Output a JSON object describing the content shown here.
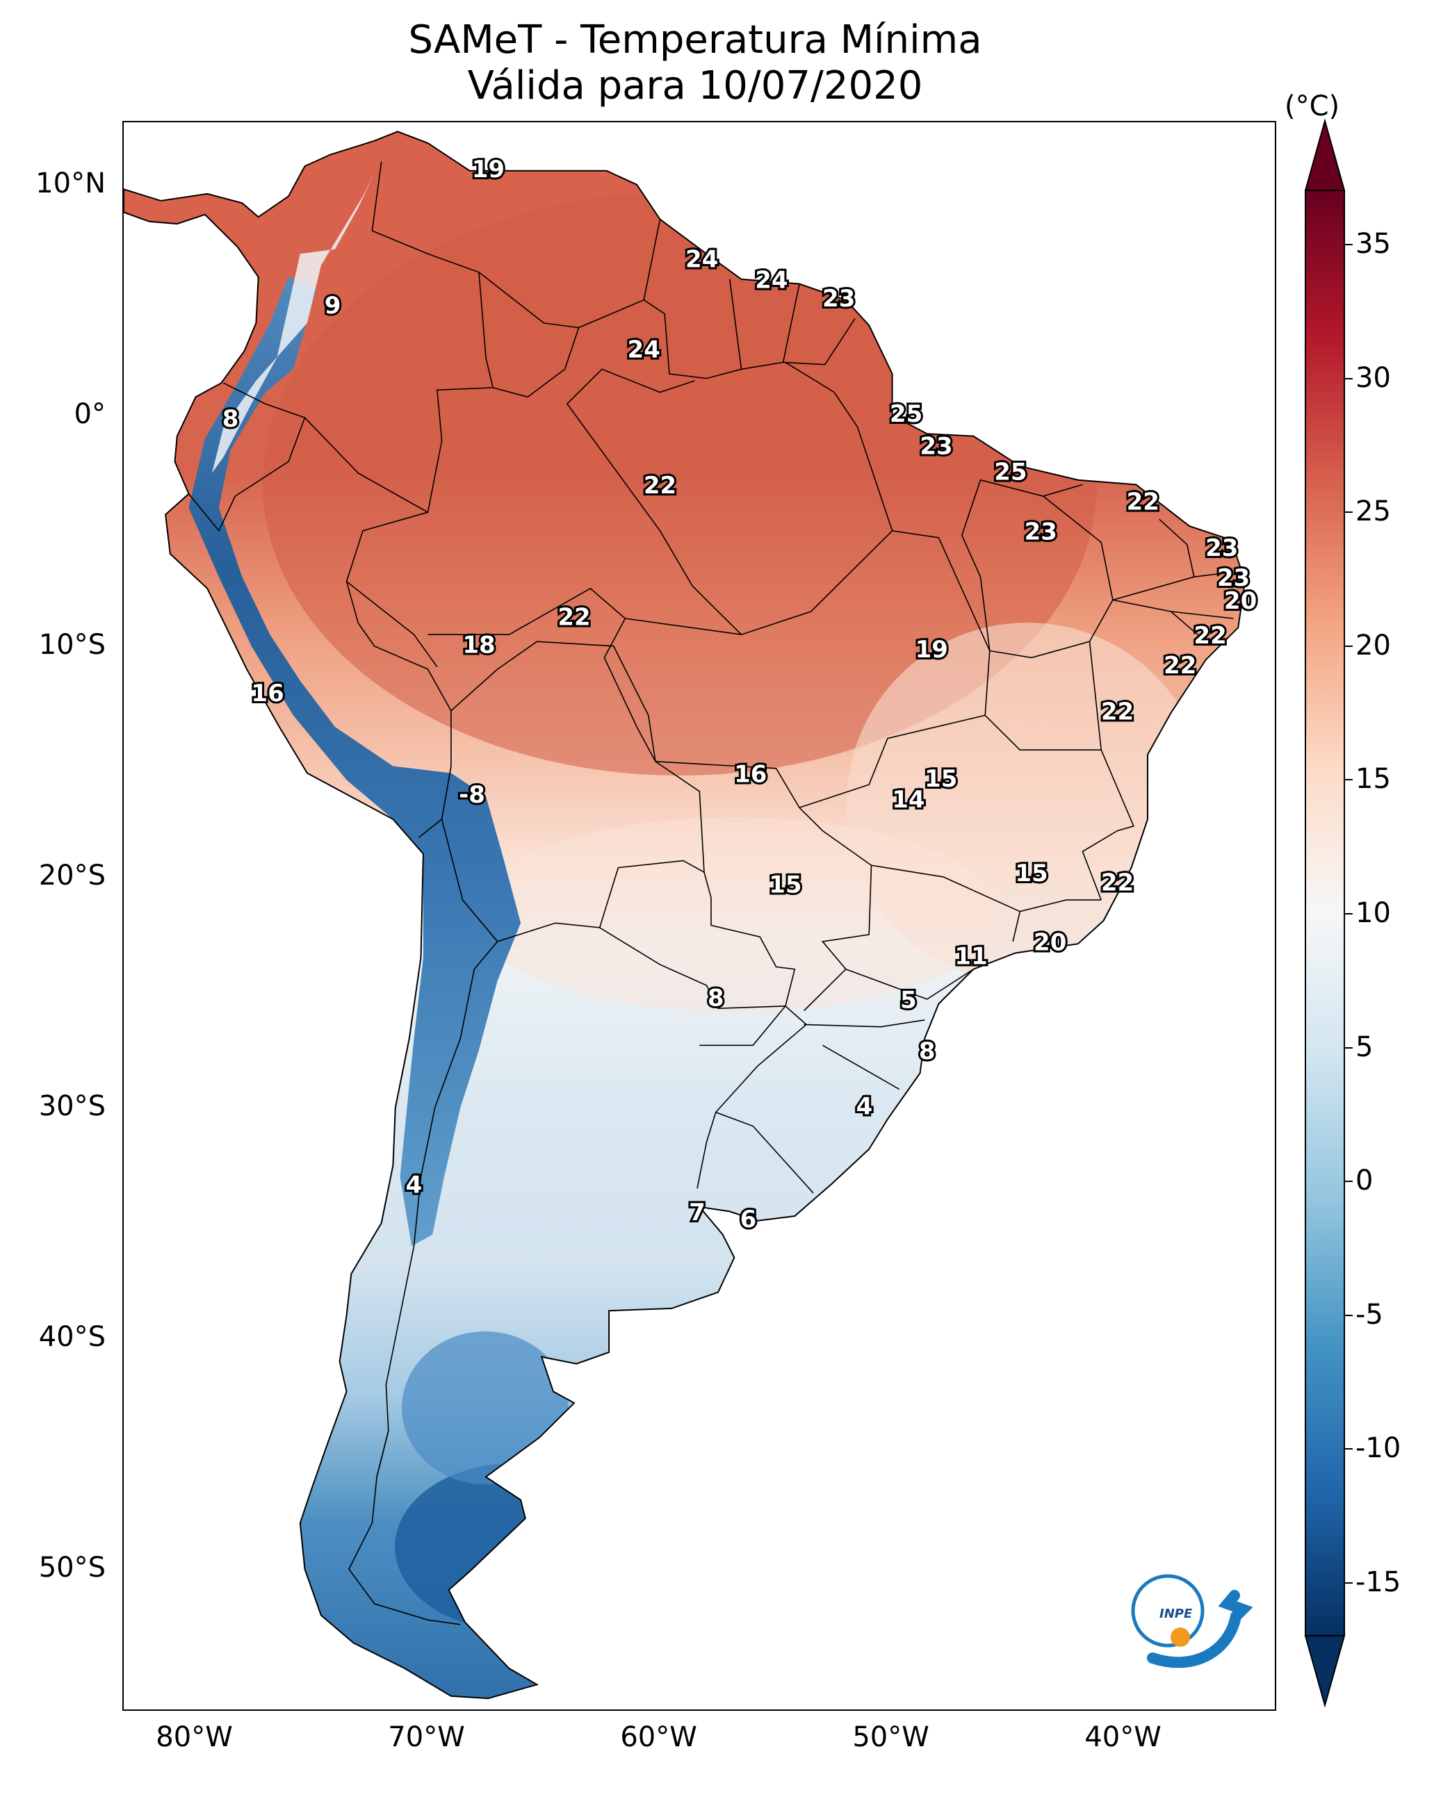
{
  "title": "SAMeT - Temperatura Mínima",
  "subtitle": "Válida para 10/07/2020",
  "colorbar": {
    "unit": "(°C)",
    "ticks": [
      "35",
      "30",
      "25",
      "20",
      "15",
      "10",
      "5",
      "0",
      "-5",
      "-10",
      "-15"
    ],
    "range": [
      -17,
      37
    ],
    "colors": [
      "#053061",
      "#2166ac",
      "#4393c3",
      "#92c5de",
      "#d1e5f0",
      "#f7f7f7",
      "#fddbc7",
      "#f4a582",
      "#d6604d",
      "#b2182b",
      "#67001f"
    ]
  },
  "axes": {
    "lat_labels": [
      "10°N",
      "0°",
      "10°S",
      "20°S",
      "30°S",
      "40°S",
      "50°S"
    ],
    "lon_labels": [
      "80°W",
      "70°W",
      "60°W",
      "50°W",
      "40°W"
    ]
  },
  "logo": {
    "text": "INPE",
    "icon": "inpe-logo"
  },
  "station_labels": [
    {
      "value": "19",
      "lon": -67.4,
      "lat": 10.6
    },
    {
      "value": "9",
      "lon": -74.1,
      "lat": 4.7
    },
    {
      "value": "24",
      "lon": -58.2,
      "lat": 6.7
    },
    {
      "value": "24",
      "lon": -55.2,
      "lat": 5.8
    },
    {
      "value": "23",
      "lon": -52.3,
      "lat": 5.0
    },
    {
      "value": "24",
      "lon": -60.7,
      "lat": 2.8
    },
    {
      "value": "8",
      "lon": -78.5,
      "lat": -0.2
    },
    {
      "value": "25",
      "lon": -49.4,
      "lat": 0.0
    },
    {
      "value": "23",
      "lon": -48.1,
      "lat": -1.4
    },
    {
      "value": "25",
      "lon": -44.9,
      "lat": -2.5
    },
    {
      "value": "22",
      "lon": -60.0,
      "lat": -3.1
    },
    {
      "value": "22",
      "lon": -39.2,
      "lat": -3.8
    },
    {
      "value": "23",
      "lon": -43.6,
      "lat": -5.1
    },
    {
      "value": "23",
      "lon": -35.8,
      "lat": -5.8
    },
    {
      "value": "23",
      "lon": -35.3,
      "lat": -7.1
    },
    {
      "value": "20",
      "lon": -35.0,
      "lat": -8.1
    },
    {
      "value": "22",
      "lon": -63.7,
      "lat": -8.8
    },
    {
      "value": "22",
      "lon": -36.3,
      "lat": -9.6
    },
    {
      "value": "18",
      "lon": -67.8,
      "lat": -10.0
    },
    {
      "value": "19",
      "lon": -48.3,
      "lat": -10.2
    },
    {
      "value": "22",
      "lon": -37.6,
      "lat": -10.9
    },
    {
      "value": "16",
      "lon": -76.9,
      "lat": -12.1
    },
    {
      "value": "22",
      "lon": -40.3,
      "lat": -12.9
    },
    {
      "value": "16",
      "lon": -56.1,
      "lat": -15.6
    },
    {
      "value": "15",
      "lon": -47.9,
      "lat": -15.8
    },
    {
      "value": "14",
      "lon": -49.3,
      "lat": -16.7
    },
    {
      "value": "-8",
      "lon": -68.1,
      "lat": -16.5
    },
    {
      "value": "15",
      "lon": -44.0,
      "lat": -19.9
    },
    {
      "value": "22",
      "lon": -40.3,
      "lat": -20.3
    },
    {
      "value": "15",
      "lon": -54.6,
      "lat": -20.4
    },
    {
      "value": "20",
      "lon": -43.2,
      "lat": -22.9
    },
    {
      "value": "11",
      "lon": -46.6,
      "lat": -23.5
    },
    {
      "value": "8",
      "lon": -57.6,
      "lat": -25.3
    },
    {
      "value": "5",
      "lon": -49.3,
      "lat": -25.4
    },
    {
      "value": "8",
      "lon": -48.5,
      "lat": -27.6
    },
    {
      "value": "4",
      "lon": -51.2,
      "lat": -30.0
    },
    {
      "value": "4",
      "lon": -70.6,
      "lat": -33.4
    },
    {
      "value": "7",
      "lon": -58.4,
      "lat": -34.6
    },
    {
      "value": "6",
      "lon": -56.2,
      "lat": -34.9
    }
  ]
}
